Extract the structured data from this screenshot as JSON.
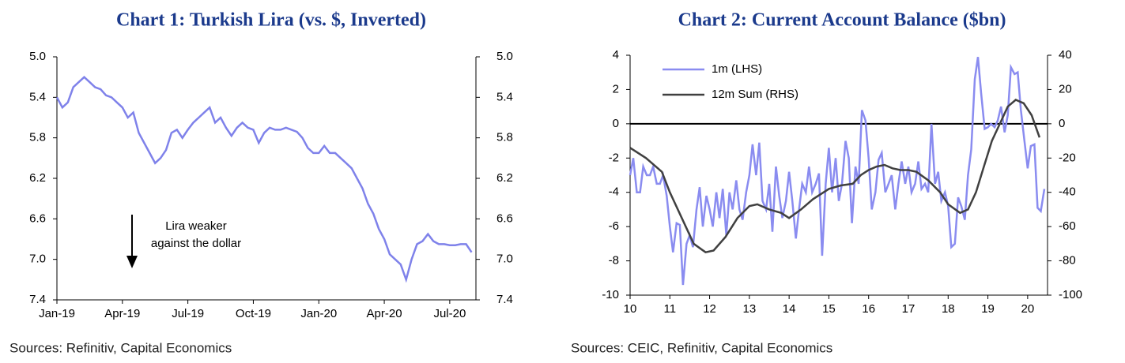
{
  "chart_data": [
    {
      "type": "line",
      "title": "Chart 1: Turkish Lira (vs. $, Inverted)",
      "source": "Sources: Refinitiv, Capital Economics",
      "annotation": [
        "Lira weaker",
        "against the dollar"
      ],
      "y_inverted": true,
      "color": "#7f82ea",
      "xlim": [
        0,
        19.2
      ],
      "xticks": [
        {
          "value": 0,
          "label": "Jan-19"
        },
        {
          "value": 3,
          "label": "Apr-19"
        },
        {
          "value": 6,
          "label": "Jul-19"
        },
        {
          "value": 9,
          "label": "Oct-19"
        },
        {
          "value": 12,
          "label": "Jan-20"
        },
        {
          "value": 15,
          "label": "Apr-20"
        },
        {
          "value": 18,
          "label": "Jul-20"
        }
      ],
      "ylim": [
        5.0,
        7.4
      ],
      "yticks": [
        {
          "value": 5,
          "label": "5.0"
        },
        5.4,
        5.8,
        6.2,
        6.6,
        {
          "value": 7,
          "label": "7.0"
        },
        7.4
      ],
      "x": [
        0,
        0.25,
        0.5,
        0.75,
        1,
        1.25,
        1.5,
        1.75,
        2,
        2.25,
        2.5,
        2.75,
        3,
        3.25,
        3.5,
        3.75,
        4,
        4.25,
        4.5,
        4.75,
        5,
        5.25,
        5.5,
        5.75,
        6,
        6.25,
        6.5,
        6.75,
        7,
        7.25,
        7.5,
        7.75,
        8,
        8.25,
        8.5,
        8.75,
        9,
        9.25,
        9.5,
        9.75,
        10,
        10.25,
        10.5,
        10.75,
        11,
        11.25,
        11.5,
        11.75,
        12,
        12.25,
        12.5,
        12.75,
        13,
        13.25,
        13.5,
        13.75,
        14,
        14.25,
        14.5,
        14.75,
        15,
        15.25,
        15.5,
        15.75,
        16,
        16.25,
        16.5,
        16.75,
        17,
        17.25,
        17.5,
        17.75,
        18,
        18.25,
        18.5,
        18.75,
        19
      ],
      "values": [
        5.4,
        5.5,
        5.45,
        5.3,
        5.25,
        5.2,
        5.25,
        5.3,
        5.32,
        5.38,
        5.4,
        5.45,
        5.5,
        5.6,
        5.55,
        5.75,
        5.85,
        5.95,
        6.05,
        6.0,
        5.92,
        5.75,
        5.72,
        5.8,
        5.72,
        5.65,
        5.6,
        5.55,
        5.5,
        5.65,
        5.6,
        5.7,
        5.78,
        5.7,
        5.65,
        5.7,
        5.72,
        5.85,
        5.75,
        5.7,
        5.72,
        5.72,
        5.7,
        5.72,
        5.74,
        5.8,
        5.9,
        5.95,
        5.95,
        5.88,
        5.95,
        5.95,
        6.0,
        6.05,
        6.1,
        6.2,
        6.3,
        6.45,
        6.55,
        6.7,
        6.8,
        6.95,
        7.0,
        7.05,
        7.2,
        7.0,
        6.85,
        6.82,
        6.75,
        6.82,
        6.85,
        6.85,
        6.86,
        6.86,
        6.85,
        6.85,
        6.93
      ]
    },
    {
      "type": "line",
      "title": "Chart 2: Current Account Balance ($bn)",
      "source": "Sources: CEIC, Refinitiv, Capital Economics",
      "xlim": [
        10,
        20.5
      ],
      "xticks": [
        10,
        11,
        12,
        13,
        14,
        15,
        16,
        17,
        18,
        19,
        20
      ],
      "ylim": [
        -10,
        4
      ],
      "yticks": [
        -10,
        -8,
        -6,
        -4,
        -2,
        0,
        2,
        4
      ],
      "y2lim": [
        -100,
        40
      ],
      "y2ticks": [
        -100,
        -80,
        -60,
        -40,
        -20,
        0,
        20,
        40
      ],
      "zero_line": true,
      "series": [
        {
          "name": "1m (LHS)",
          "color": "#8a8cf0",
          "x": [
            10,
            10.08,
            10.17,
            10.25,
            10.33,
            10.42,
            10.5,
            10.58,
            10.67,
            10.75,
            10.83,
            10.92,
            11,
            11.08,
            11.17,
            11.25,
            11.33,
            11.42,
            11.5,
            11.58,
            11.67,
            11.75,
            11.83,
            11.92,
            12,
            12.08,
            12.17,
            12.25,
            12.33,
            12.42,
            12.5,
            12.58,
            12.67,
            12.75,
            12.83,
            12.92,
            13,
            13.08,
            13.17,
            13.25,
            13.33,
            13.42,
            13.5,
            13.58,
            13.67,
            13.75,
            13.83,
            13.92,
            14,
            14.08,
            14.17,
            14.25,
            14.33,
            14.42,
            14.5,
            14.58,
            14.67,
            14.75,
            14.83,
            14.92,
            15,
            15.08,
            15.17,
            15.25,
            15.33,
            15.42,
            15.5,
            15.58,
            15.67,
            15.75,
            15.83,
            15.92,
            16,
            16.08,
            16.17,
            16.25,
            16.33,
            16.42,
            16.5,
            16.58,
            16.67,
            16.75,
            16.83,
            16.92,
            17,
            17.08,
            17.17,
            17.25,
            17.33,
            17.42,
            17.5,
            17.58,
            17.67,
            17.75,
            17.83,
            17.92,
            18,
            18.08,
            18.17,
            18.25,
            18.33,
            18.42,
            18.5,
            18.58,
            18.67,
            18.75,
            18.83,
            18.92,
            19,
            19.08,
            19.17,
            19.25,
            19.33,
            19.42,
            19.5,
            19.58,
            19.67,
            19.75,
            19.83,
            19.92,
            20,
            20.08,
            20.17,
            20.25,
            20.33,
            20.42
          ],
          "values": [
            -3,
            -2,
            -4,
            -4,
            -2.5,
            -3,
            -3,
            -2.5,
            -3.5,
            -3.5,
            -3,
            -4.2,
            -6,
            -7.5,
            -5.8,
            -5.9,
            -9.4,
            -7,
            -6.5,
            -7.2,
            -5,
            -3.7,
            -6,
            -4.2,
            -5,
            -6,
            -4,
            -5.5,
            -3.8,
            -6.5,
            -4,
            -5,
            -3.3,
            -5,
            -5.6,
            -4,
            -3,
            -1.2,
            -3,
            -1.1,
            -4.5,
            -5,
            -3.5,
            -6.3,
            -2.5,
            -4.2,
            -5.5,
            -4.5,
            -2.8,
            -4.5,
            -6.7,
            -5,
            -3.5,
            -4,
            -2.5,
            -4,
            -3.5,
            -2.9,
            -7.7,
            -3.5,
            -1.4,
            -4,
            -2,
            -4.5,
            -3.5,
            -1,
            -2,
            -5.8,
            -2.5,
            -3.5,
            0.8,
            0.2,
            -2,
            -5,
            -4,
            -2.1,
            -1.7,
            -4,
            -3.5,
            -3,
            -5,
            -3.5,
            -2.2,
            -3.5,
            -2.5,
            -4,
            -3.5,
            -2.2,
            -3.8,
            -3.5,
            -4,
            0,
            -3.5,
            -2.8,
            -4.5,
            -4,
            -4.8,
            -7.2,
            -7,
            -4.3,
            -4.8,
            -5.6,
            -3,
            -1.5,
            2.6,
            3.9,
            1.8,
            -0.3,
            -0.2,
            0,
            -0.2,
            0.2,
            1,
            -0.5,
            0.5,
            3.3,
            2.9,
            3,
            0.8,
            -1,
            -2.6,
            -1.3,
            -1.2,
            -4.9,
            -5.1,
            -3.8
          ]
        },
        {
          "name": "12m Sum (RHS)",
          "color": "#404040",
          "axis": "y2",
          "x": [
            10,
            10.4,
            10.8,
            11,
            11.3,
            11.6,
            11.9,
            12.1,
            12.4,
            12.7,
            13,
            13.2,
            13.5,
            13.8,
            14,
            14.3,
            14.6,
            15,
            15.3,
            15.6,
            15.8,
            16,
            16.2,
            16.4,
            16.6,
            16.8,
            17,
            17.2,
            17.5,
            17.8,
            18,
            18.3,
            18.5,
            18.7,
            18.9,
            19.1,
            19.3,
            19.5,
            19.7,
            19.9,
            20.1,
            20.3
          ],
          "values": [
            -14,
            -20,
            -28,
            -40,
            -55,
            -70,
            -75,
            -74,
            -66,
            -55,
            -48,
            -47,
            -50,
            -52,
            -55,
            -50,
            -44,
            -38,
            -36,
            -35,
            -30,
            -27,
            -25,
            -24,
            -26,
            -27,
            -27,
            -28,
            -33,
            -40,
            -47,
            -52,
            -50,
            -40,
            -25,
            -10,
            0,
            10,
            14,
            12,
            5,
            -8
          ]
        }
      ]
    }
  ]
}
